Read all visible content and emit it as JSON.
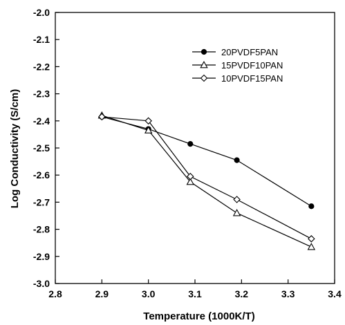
{
  "chart_data": {
    "type": "line",
    "title": "",
    "xlabel": "Temperature (1000K/T)",
    "ylabel": "Log Conductivity (S/cm)",
    "xlim": [
      2.8,
      3.4
    ],
    "ylim": [
      -3.0,
      -2.0
    ],
    "xticks": [
      "2.8",
      "2.9",
      "3.0",
      "3.1",
      "3.2",
      "3.3",
      "3.4"
    ],
    "yticks": [
      "-2.0",
      "-2.1",
      "-2.2",
      "-2.3",
      "-2.4",
      "-2.5",
      "-2.6",
      "-2.7",
      "-2.8",
      "-2.9",
      "-3.0"
    ],
    "grid": false,
    "legend_position": "top-right",
    "series": [
      {
        "name": "20PVDF5PAN",
        "marker": "filled-circle",
        "x": [
          2.9,
          3.0,
          3.09,
          3.19,
          3.35
        ],
        "y": [
          -2.385,
          -2.43,
          -2.485,
          -2.545,
          -2.715
        ]
      },
      {
        "name": "15PVDF10PAN",
        "marker": "open-triangle",
        "x": [
          2.9,
          3.0,
          3.09,
          3.19,
          3.35
        ],
        "y": [
          -2.38,
          -2.435,
          -2.625,
          -2.74,
          -2.865
        ]
      },
      {
        "name": "10PVDF15PAN",
        "marker": "open-diamond",
        "x": [
          2.9,
          3.0,
          3.09,
          3.19,
          3.35
        ],
        "y": [
          -2.385,
          -2.4,
          -2.605,
          -2.69,
          -2.835
        ]
      }
    ]
  }
}
